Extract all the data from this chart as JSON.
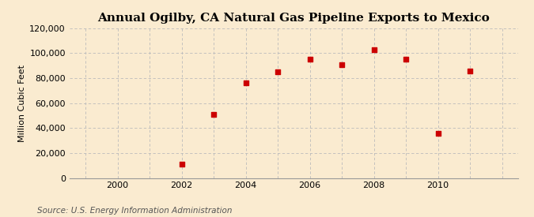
{
  "title": "Annual Ogilby, CA Natural Gas Pipeline Exports to Mexico",
  "ylabel": "Million Cubic Feet",
  "source": "Source: U.S. Energy Information Administration",
  "years": [
    2002,
    2003,
    2004,
    2005,
    2006,
    2007,
    2008,
    2009,
    2010,
    2011
  ],
  "values": [
    11000,
    51000,
    76000,
    85000,
    95000,
    91000,
    103000,
    95000,
    36000,
    86000
  ],
  "xlim": [
    1998.5,
    2012.5
  ],
  "ylim": [
    0,
    120000
  ],
  "yticks": [
    0,
    20000,
    40000,
    60000,
    80000,
    100000,
    120000
  ],
  "xticks": [
    2000,
    2002,
    2004,
    2006,
    2008,
    2010
  ],
  "all_x_gridlines": [
    1999,
    2000,
    2001,
    2002,
    2003,
    2004,
    2005,
    2006,
    2007,
    2008,
    2009,
    2010,
    2011,
    2012
  ],
  "marker_color": "#cc0000",
  "marker": "s",
  "marker_size": 4,
  "bg_color": "#faebd0",
  "grid_color": "#bbbbbb",
  "title_fontsize": 11,
  "label_fontsize": 8,
  "tick_fontsize": 8,
  "source_fontsize": 7.5
}
